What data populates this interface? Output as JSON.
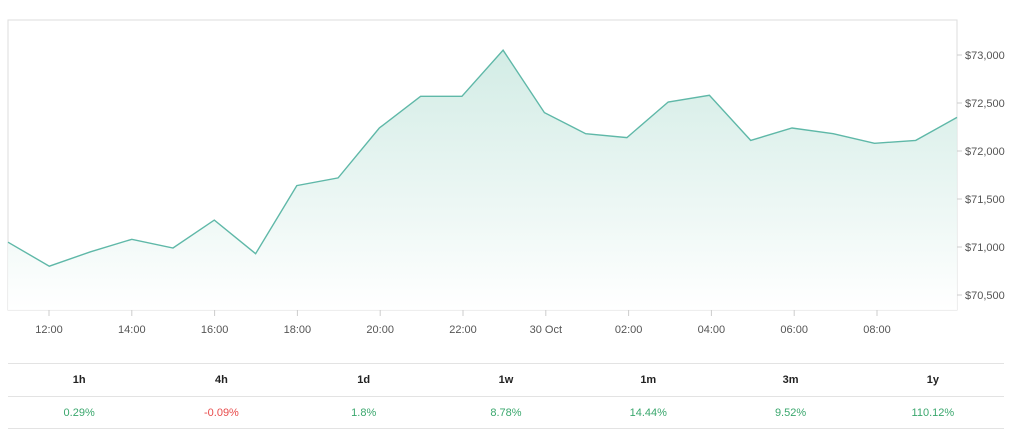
{
  "chart_data": {
    "type": "area",
    "x_labels": [
      "12:00",
      "14:00",
      "16:00",
      "18:00",
      "20:00",
      "22:00",
      "30 Oct",
      "02:00",
      "04:00",
      "06:00",
      "08:00"
    ],
    "y_ticks": [
      "$70,500",
      "$71,000",
      "$71,500",
      "$72,000",
      "$72,500",
      "$73,000"
    ],
    "ylim": [
      70500,
      73000
    ],
    "values": [
      71050,
      70800,
      70950,
      71080,
      70990,
      71280,
      70930,
      71640,
      71720,
      72240,
      72570,
      72570,
      73050,
      72400,
      72180,
      72140,
      72510,
      72580,
      72110,
      72240,
      72180,
      72080,
      72110,
      72350
    ],
    "line_color": "#5fb8a8",
    "fill_color": "#dff1ec",
    "grid": false
  },
  "performance": {
    "headers": [
      "1h",
      "4h",
      "1d",
      "1w",
      "1m",
      "3m",
      "1y"
    ],
    "values": [
      "0.29%",
      "-0.09%",
      "1.8%",
      "8.78%",
      "14.44%",
      "9.52%",
      "110.12%"
    ],
    "colors": {
      "positive": "#3aa76d",
      "negative": "#e84b4b"
    }
  }
}
